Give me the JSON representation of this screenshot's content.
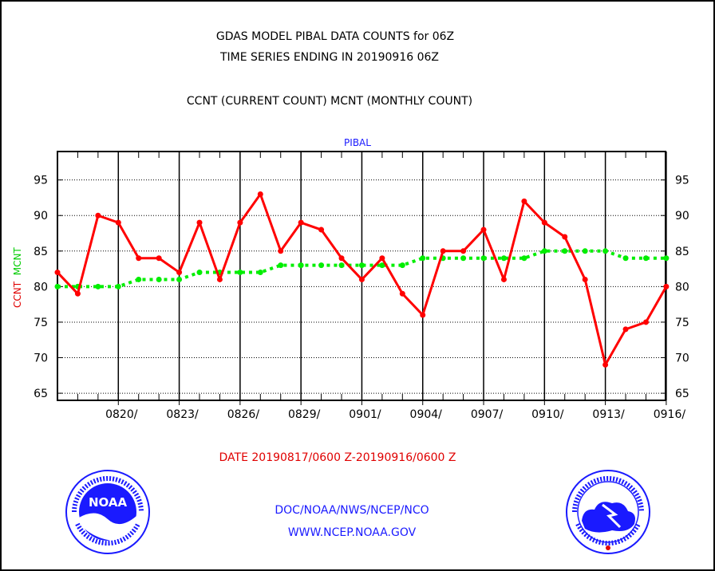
{
  "title": "GDAS MODEL PIBAL DATA COUNTS for 06Z",
  "subtitle": "TIME SERIES ENDING IN 20190916 06Z",
  "legend_text": "CCNT (CURRENT COUNT) MCNT (MONTHLY COUNT)",
  "panel_label": "PIBAL",
  "ylabel_ccnt": "CCNT",
  "ylabel_mcnt": "MCNT",
  "date_range": "DATE 20190817/0600 Z-20190916/0600 Z",
  "credit_line1": "DOC/NOAA/NWS/NCEP/NCO",
  "credit_line2": "WWW.NCEP.NOAA.GOV",
  "logos": {
    "left": "noaa-logo",
    "right": "nws-logo"
  },
  "colors": {
    "ccnt": "#ff0000",
    "mcnt": "#00ee00",
    "text_red": "#e00000",
    "text_blue": "#1a1aff"
  },
  "chart_data": {
    "type": "line",
    "x": [
      "0817",
      "0818",
      "0819",
      "0820",
      "0821",
      "0822",
      "0823",
      "0824",
      "0825",
      "0826",
      "0827",
      "0828",
      "0829",
      "0830",
      "0831",
      "0901",
      "0902",
      "0903",
      "0904",
      "0905",
      "0906",
      "0907",
      "0908",
      "0909",
      "0910",
      "0911",
      "0912",
      "0913",
      "0914",
      "0915",
      "0916"
    ],
    "x_tick_labels": [
      "0820/",
      "0823/",
      "0826/",
      "0829/",
      "0901/",
      "0904/",
      "0907/",
      "0910/",
      "0913/",
      "0916/"
    ],
    "y_ticks": [
      65,
      70,
      75,
      80,
      85,
      90,
      95
    ],
    "ylim": [
      64,
      99
    ],
    "grid": true,
    "series": [
      {
        "name": "CCNT",
        "values": [
          82,
          79,
          90,
          89,
          84,
          84,
          82,
          89,
          81,
          89,
          93,
          85,
          89,
          88,
          84,
          81,
          84,
          79,
          76,
          85,
          85,
          88,
          81,
          92,
          89,
          87,
          81,
          69,
          74,
          75,
          80
        ]
      },
      {
        "name": "MCNT",
        "values": [
          80,
          80,
          80,
          80,
          81,
          81,
          81,
          82,
          82,
          82,
          82,
          83,
          83,
          83,
          83,
          83,
          83,
          83,
          84,
          84,
          84,
          84,
          84,
          84,
          85,
          85,
          85,
          85,
          84,
          84,
          84
        ]
      }
    ]
  }
}
